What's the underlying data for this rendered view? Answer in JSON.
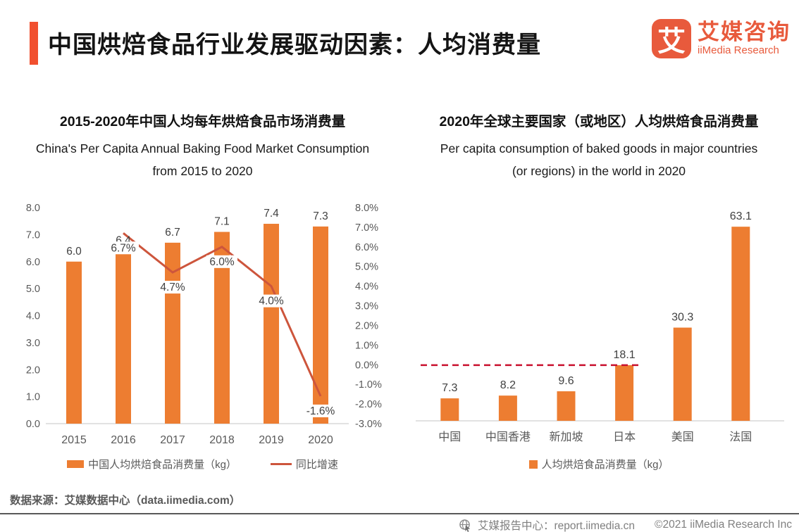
{
  "header": {
    "title": "中国烘焙食品行业发展驱动因素：人均消费量",
    "accent_color": "#F1502F",
    "logo": {
      "glyph": "艾",
      "name_zh": "艾媒咨询",
      "name_en": "iiMedia Research",
      "color": "#E85A3C"
    }
  },
  "chart_data": [
    {
      "type": "bar+line",
      "title": "2015-2020年中国人均每年烘焙食品市场消费量",
      "subtitle": [
        "China's Per Capita Annual Baking Food Market Consumption",
        "from 2015 to 2020"
      ],
      "categories": [
        "2015",
        "2016",
        "2017",
        "2018",
        "2019",
        "2020"
      ],
      "series": [
        {
          "name": "中国人均烘焙食品消费量（kg）",
          "type": "bar",
          "axis": "left",
          "color": "#ED7D31",
          "values": [
            6.0,
            6.4,
            6.7,
            7.1,
            7.4,
            7.3
          ],
          "labels": [
            "6.0",
            "6.4",
            "6.7",
            "7.1",
            "7.4",
            "7.3"
          ]
        },
        {
          "name": "同比增速",
          "type": "line",
          "axis": "right",
          "color": "#CD553C",
          "values": [
            null,
            6.7,
            4.7,
            6.0,
            4.0,
            -1.6
          ],
          "labels": [
            null,
            "6.7%",
            "4.7%",
            "6.0%",
            "4.0%",
            "-1.6%"
          ]
        }
      ],
      "y_left": {
        "min": 0,
        "max": 8,
        "tick_labels": [
          "8.0",
          "7.0",
          "6.0",
          "5.0",
          "4.0",
          "3.0",
          "2.0",
          "1.0",
          "0.0"
        ]
      },
      "y_right": {
        "min": -3,
        "max": 8,
        "tick_labels": [
          "8.0%",
          "7.0%",
          "6.0%",
          "5.0%",
          "4.0%",
          "3.0%",
          "2.0%",
          "1.0%",
          "0.0%",
          "-1.0%",
          "-2.0%",
          "-3.0%"
        ]
      },
      "grid": false,
      "legend_position": "bottom"
    },
    {
      "type": "bar",
      "title": "2020年全球主要国家（或地区）人均烘焙食品消费量",
      "subtitle": [
        "Per capita consumption of baked goods in major countries",
        "(or regions) in the world in 2020"
      ],
      "categories": [
        "中国",
        "中国香港",
        "新加坡",
        "日本",
        "美国",
        "法国"
      ],
      "series_name": "人均烘焙食品消费量（kg）",
      "bar_color": "#ED7D31",
      "values": [
        7.3,
        8.2,
        9.6,
        18.1,
        30.3,
        63.1
      ],
      "labels": [
        "7.3",
        "8.2",
        "9.6",
        "18.1",
        "30.3",
        "63.1"
      ],
      "ylim": [
        0,
        70
      ],
      "reference_line": {
        "value": 18.1,
        "style": "dashed",
        "color": "#C9102E"
      },
      "grid": false,
      "legend_position": "bottom"
    }
  ],
  "footer": {
    "source": "数据来源：艾媒数据中心（data.iimedia.com）",
    "report_center": "艾媒报告中心：report.iimedia.cn",
    "copyright": "©2021  iiMedia Research Inc"
  }
}
